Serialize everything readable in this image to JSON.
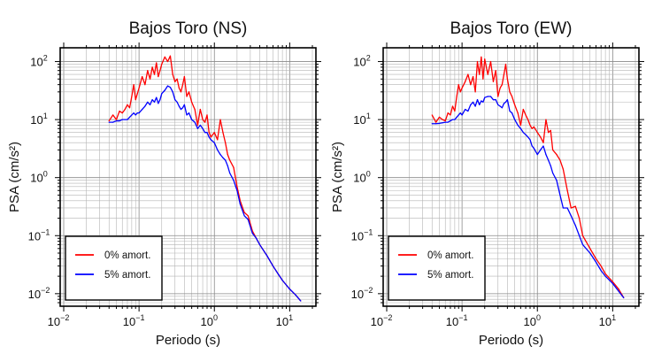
{
  "chart_data": [
    {
      "type": "line",
      "title": "Bajos Toro (NS)",
      "xlabel": "Periodo (s)",
      "ylabel": "PSA (cm/s²)",
      "xscale": "log",
      "yscale": "log",
      "xlim": [
        0.01,
        20
      ],
      "ylim": [
        0.007,
        150
      ],
      "grid": true,
      "legend_position": "bottom-left",
      "x_ticks": [
        {
          "base": "10",
          "exp": "−2"
        },
        {
          "base": "10",
          "exp": "−1"
        },
        {
          "base": "10",
          "exp": "0"
        },
        {
          "base": "10",
          "exp": "1"
        }
      ],
      "y_ticks": [
        {
          "base": "10",
          "exp": "−2"
        },
        {
          "base": "10",
          "exp": "−1"
        },
        {
          "base": "10",
          "exp": "0"
        },
        {
          "base": "10",
          "exp": "1"
        },
        {
          "base": "10",
          "exp": "2"
        }
      ],
      "series": [
        {
          "name": "0% amort.",
          "color": "#ff0000",
          "x": [
            0.04,
            0.045,
            0.05,
            0.055,
            0.06,
            0.065,
            0.07,
            0.075,
            0.08,
            0.085,
            0.09,
            0.095,
            0.1,
            0.11,
            0.12,
            0.13,
            0.14,
            0.15,
            0.16,
            0.17,
            0.18,
            0.19,
            0.2,
            0.22,
            0.24,
            0.26,
            0.28,
            0.3,
            0.32,
            0.34,
            0.36,
            0.38,
            0.4,
            0.43,
            0.46,
            0.5,
            0.55,
            0.6,
            0.65,
            0.7,
            0.75,
            0.8,
            0.85,
            0.9,
            1.0,
            1.1,
            1.2,
            1.3,
            1.4,
            1.5,
            1.6,
            1.8,
            2.0,
            2.2,
            2.5,
            2.8,
            3.2,
            3.6,
            4.0,
            5.0,
            6.0,
            7.0,
            8.0,
            10.0,
            12.0,
            14.0
          ],
          "values": [
            9.5,
            12,
            10,
            14,
            13,
            15,
            18,
            16,
            25,
            40,
            22,
            28,
            35,
            55,
            40,
            70,
            50,
            80,
            60,
            95,
            55,
            70,
            90,
            120,
            100,
            125,
            60,
            45,
            50,
            35,
            30,
            40,
            55,
            25,
            30,
            20,
            15,
            8,
            15,
            10,
            9,
            12,
            6,
            5,
            6,
            4.5,
            10,
            6,
            4,
            2.5,
            2,
            1.5,
            0.7,
            0.4,
            0.25,
            0.22,
            0.12,
            0.09,
            0.07,
            0.045,
            0.03,
            0.022,
            0.017,
            0.012,
            0.0095,
            0.0075
          ]
        },
        {
          "name": "5% amort.",
          "color": "#0000ff",
          "x": [
            0.04,
            0.045,
            0.05,
            0.055,
            0.06,
            0.065,
            0.07,
            0.075,
            0.08,
            0.085,
            0.09,
            0.095,
            0.1,
            0.11,
            0.12,
            0.13,
            0.14,
            0.15,
            0.16,
            0.17,
            0.18,
            0.19,
            0.2,
            0.22,
            0.24,
            0.26,
            0.28,
            0.3,
            0.32,
            0.34,
            0.36,
            0.38,
            0.4,
            0.43,
            0.46,
            0.5,
            0.55,
            0.6,
            0.65,
            0.7,
            0.75,
            0.8,
            0.85,
            0.9,
            1.0,
            1.1,
            1.2,
            1.3,
            1.4,
            1.5,
            1.6,
            1.8,
            2.0,
            2.2,
            2.5,
            2.8,
            3.2,
            3.6,
            4.0,
            5.0,
            6.0,
            7.0,
            8.0,
            10.0,
            12.0,
            14.0
          ],
          "values": [
            9,
            9,
            9.5,
            9.5,
            10,
            10,
            10,
            11,
            12,
            13,
            12,
            13,
            13,
            15,
            17,
            20,
            18,
            22,
            20,
            24,
            19,
            22,
            28,
            32,
            38,
            36,
            30,
            22,
            20,
            17,
            15,
            16,
            18,
            12,
            13,
            10,
            9,
            7,
            8,
            7,
            6,
            6,
            5,
            4.5,
            4,
            3,
            2.5,
            2.2,
            2.0,
            1.6,
            1.2,
            0.9,
            0.6,
            0.35,
            0.22,
            0.19,
            0.11,
            0.09,
            0.07,
            0.045,
            0.03,
            0.022,
            0.017,
            0.012,
            0.0095,
            0.0075
          ]
        }
      ]
    },
    {
      "type": "line",
      "title": "Bajos Toro (EW)",
      "xlabel": "Periodo (s)",
      "ylabel": "PSA (cm/s²)",
      "xscale": "log",
      "yscale": "log",
      "xlim": [
        0.01,
        20
      ],
      "ylim": [
        0.007,
        150
      ],
      "grid": true,
      "legend_position": "bottom-left",
      "x_ticks": [
        {
          "base": "10",
          "exp": "−2"
        },
        {
          "base": "10",
          "exp": "−1"
        },
        {
          "base": "10",
          "exp": "0"
        },
        {
          "base": "10",
          "exp": "1"
        }
      ],
      "y_ticks": [
        {
          "base": "10",
          "exp": "−2"
        },
        {
          "base": "10",
          "exp": "−1"
        },
        {
          "base": "10",
          "exp": "0"
        },
        {
          "base": "10",
          "exp": "1"
        },
        {
          "base": "10",
          "exp": "2"
        }
      ],
      "series": [
        {
          "name": "0% amort.",
          "color": "#ff0000",
          "x": [
            0.04,
            0.045,
            0.05,
            0.055,
            0.06,
            0.065,
            0.07,
            0.075,
            0.08,
            0.085,
            0.09,
            0.095,
            0.1,
            0.11,
            0.12,
            0.13,
            0.14,
            0.15,
            0.16,
            0.17,
            0.18,
            0.19,
            0.2,
            0.22,
            0.24,
            0.26,
            0.28,
            0.3,
            0.32,
            0.34,
            0.36,
            0.38,
            0.4,
            0.43,
            0.46,
            0.5,
            0.55,
            0.6,
            0.65,
            0.7,
            0.75,
            0.8,
            0.85,
            0.9,
            1.0,
            1.1,
            1.2,
            1.3,
            1.4,
            1.5,
            1.6,
            1.8,
            2.0,
            2.2,
            2.5,
            2.8,
            3.2,
            3.6,
            4.0,
            5.0,
            6.0,
            7.0,
            8.0,
            10.0,
            12.0,
            14.0
          ],
          "values": [
            12,
            9,
            11,
            10,
            9.5,
            13,
            12,
            17,
            14,
            25,
            40,
            30,
            35,
            45,
            60,
            40,
            55,
            30,
            100,
            60,
            120,
            50,
            110,
            60,
            100,
            45,
            70,
            25,
            35,
            40,
            60,
            90,
            50,
            30,
            25,
            18,
            13,
            8,
            15,
            12,
            10,
            8,
            7,
            7.5,
            6,
            5,
            4,
            10,
            6,
            6.5,
            3,
            2.5,
            2.0,
            1.4,
            0.6,
            0.3,
            0.32,
            0.2,
            0.1,
            0.06,
            0.04,
            0.03,
            0.022,
            0.016,
            0.012,
            0.0085
          ]
        },
        {
          "name": "5% amort.",
          "color": "#0000ff",
          "x": [
            0.04,
            0.045,
            0.05,
            0.055,
            0.06,
            0.065,
            0.07,
            0.075,
            0.08,
            0.085,
            0.09,
            0.095,
            0.1,
            0.11,
            0.12,
            0.13,
            0.14,
            0.15,
            0.16,
            0.17,
            0.18,
            0.19,
            0.2,
            0.22,
            0.24,
            0.26,
            0.28,
            0.3,
            0.32,
            0.34,
            0.36,
            0.38,
            0.4,
            0.43,
            0.46,
            0.5,
            0.55,
            0.6,
            0.65,
            0.7,
            0.75,
            0.8,
            0.85,
            0.9,
            1.0,
            1.1,
            1.2,
            1.3,
            1.4,
            1.5,
            1.6,
            1.8,
            2.0,
            2.2,
            2.5,
            2.8,
            3.2,
            3.6,
            4.0,
            5.0,
            6.0,
            7.0,
            8.0,
            10.0,
            12.0,
            14.0
          ],
          "values": [
            8.5,
            8.5,
            8.6,
            8.8,
            9,
            9,
            9.5,
            10,
            10,
            11,
            12,
            13,
            12,
            15,
            14,
            18,
            20,
            17,
            22,
            18,
            21,
            20,
            24,
            25,
            25,
            22,
            22,
            18,
            17,
            16,
            19,
            20,
            22,
            14,
            13,
            10,
            8,
            7,
            6,
            5.5,
            5,
            4.5,
            3.5,
            3.2,
            2.5,
            3.0,
            3.5,
            2.5,
            2.0,
            1.6,
            1.2,
            0.9,
            0.5,
            0.3,
            0.3,
            0.22,
            0.15,
            0.1,
            0.07,
            0.05,
            0.035,
            0.025,
            0.02,
            0.015,
            0.011,
            0.0085
          ]
        }
      ]
    }
  ]
}
